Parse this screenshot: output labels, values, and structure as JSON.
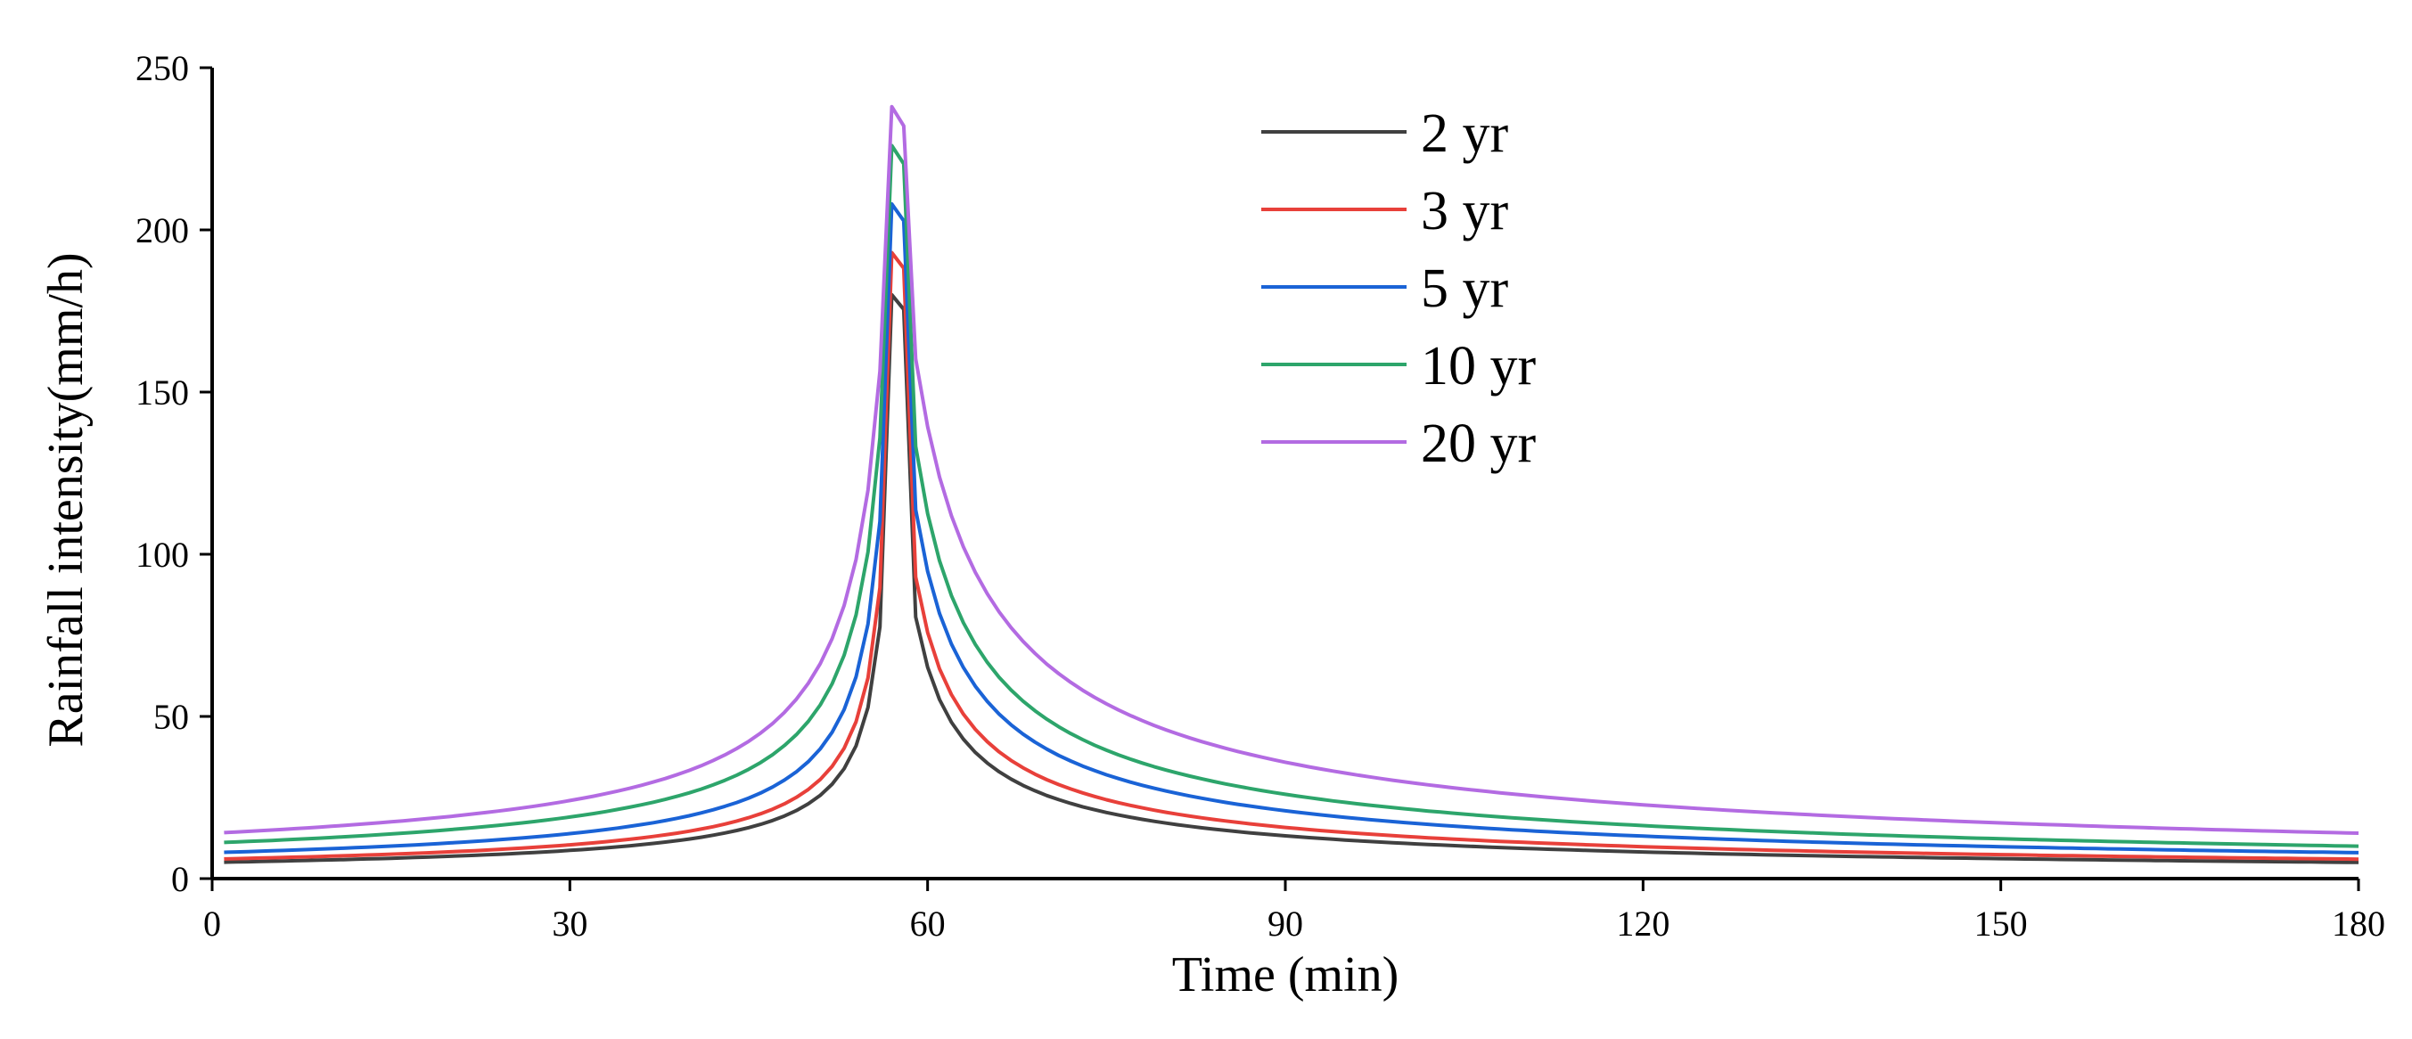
{
  "chart_data": {
    "type": "line",
    "title": "",
    "xlabel": "Time (min)",
    "ylabel": "Rainfall intensity(mm/h)",
    "xlim": [
      0,
      180
    ],
    "ylim": [
      0,
      250
    ],
    "xticks": [
      0,
      30,
      60,
      90,
      120,
      150,
      180
    ],
    "yticks": [
      0,
      50,
      100,
      150,
      200,
      250
    ],
    "grid": false,
    "legend_position": "top-center",
    "peak_time": 57,
    "peak_ratio": 0.3167,
    "duration": 180,
    "series": [
      {
        "name": "2 yr",
        "color": "#404040",
        "peak": 180,
        "start": 5,
        "end": 5
      },
      {
        "name": "3 yr",
        "color": "#e8403a",
        "peak": 193,
        "start": 6,
        "end": 6
      },
      {
        "name": "5 yr",
        "color": "#1a63d6",
        "peak": 208,
        "start": 8,
        "end": 8
      },
      {
        "name": "10 yr",
        "color": "#2da56b",
        "peak": 226,
        "start": 11,
        "end": 10
      },
      {
        "name": "20 yr",
        "color": "#b36be2",
        "peak": 238,
        "start": 14,
        "end": 14
      }
    ]
  }
}
